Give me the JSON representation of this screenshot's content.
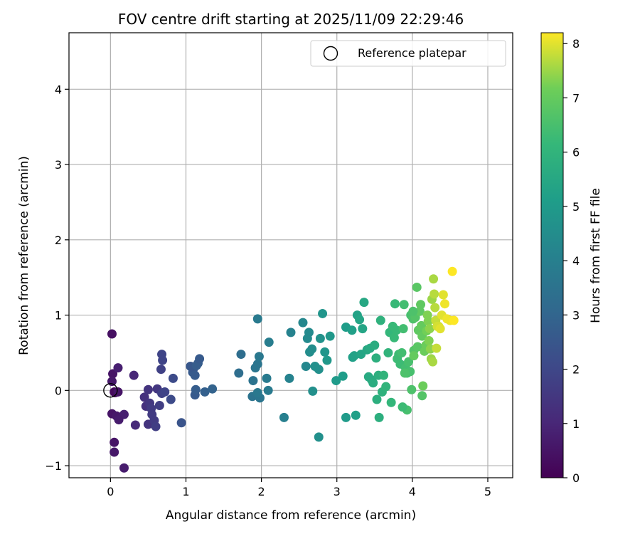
{
  "chart_data": {
    "type": "scatter",
    "title": "FOV centre drift starting at 2025/11/09 22:29:46",
    "xlabel": "Angular distance from reference (arcmin)",
    "ylabel": "Rotation from reference (arcmin)",
    "xlim": [
      -0.55,
      5.33
    ],
    "ylim": [
      -1.16,
      4.75
    ],
    "xticks": [
      "0",
      "1",
      "2",
      "3",
      "4",
      "5"
    ],
    "yticks": [
      "−1",
      "0",
      "1",
      "2",
      "3",
      "4"
    ],
    "xtick_values": [
      0,
      1,
      2,
      3,
      4,
      5
    ],
    "ytick_values": [
      -1,
      0,
      1,
      2,
      3,
      4
    ],
    "grid": true,
    "colormap": "viridis",
    "colorbar": {
      "label": "Hours from first FF file",
      "range": [
        0,
        8.2
      ],
      "ticks": [
        "0",
        "1",
        "2",
        "3",
        "4",
        "5",
        "6",
        "7",
        "8"
      ],
      "tick_values": [
        0,
        1,
        2,
        3,
        4,
        5,
        6,
        7,
        8
      ]
    },
    "legend": {
      "position": "top-right",
      "entries": [
        "Reference platepar"
      ]
    },
    "reference_point": {
      "x": 0,
      "y": 0
    },
    "points": [
      [
        0.02,
        0.75,
        0.4
      ],
      [
        0.03,
        0.22,
        0.5
      ],
      [
        0.05,
        -0.02,
        0.3
      ],
      [
        0.02,
        0.12,
        0.6
      ],
      [
        0.06,
        -0.03,
        0.2
      ],
      [
        0.1,
        -0.02,
        0.5
      ],
      [
        0.02,
        -0.31,
        0.5
      ],
      [
        0.08,
        -0.34,
        0.6
      ],
      [
        0.05,
        -0.69,
        0.5
      ],
      [
        0.05,
        -0.82,
        0.6
      ],
      [
        0.1,
        0.3,
        0.8
      ],
      [
        0.18,
        -0.32,
        0.8
      ],
      [
        0.11,
        -0.39,
        0.7
      ],
      [
        0.18,
        -1.03,
        0.7
      ],
      [
        0.31,
        0.2,
        1.0
      ],
      [
        0.33,
        -0.46,
        1.1
      ],
      [
        0.45,
        -0.09,
        1.3
      ],
      [
        0.47,
        -0.21,
        1.3
      ],
      [
        0.5,
        0.01,
        1.4
      ],
      [
        0.5,
        -0.45,
        1.4
      ],
      [
        0.52,
        -0.17,
        1.5
      ],
      [
        0.54,
        -0.24,
        1.6
      ],
      [
        0.55,
        -0.32,
        1.6
      ],
      [
        0.58,
        -0.4,
        1.6
      ],
      [
        0.6,
        -0.48,
        1.7
      ],
      [
        0.62,
        0.02,
        1.5
      ],
      [
        0.65,
        -0.2,
        1.7
      ],
      [
        0.67,
        0.28,
        1.8
      ],
      [
        0.68,
        0.48,
        1.9
      ],
      [
        0.69,
        0.4,
        1.9
      ],
      [
        0.68,
        -0.04,
        1.8
      ],
      [
        0.72,
        -0.02,
        1.9
      ],
      [
        0.8,
        -0.12,
        2.1
      ],
      [
        0.83,
        0.16,
        2.1
      ],
      [
        0.94,
        -0.43,
        2.4
      ],
      [
        1.06,
        0.32,
        2.5
      ],
      [
        1.09,
        0.24,
        2.6
      ],
      [
        1.1,
        0.29,
        2.5
      ],
      [
        1.12,
        0.2,
        2.6
      ],
      [
        1.14,
        0.33,
        2.7
      ],
      [
        1.16,
        0.36,
        2.7
      ],
      [
        1.18,
        0.42,
        2.6
      ],
      [
        1.12,
        -0.06,
        2.6
      ],
      [
        1.13,
        0.01,
        2.7
      ],
      [
        1.25,
        -0.02,
        2.8
      ],
      [
        1.35,
        0.02,
        2.9
      ],
      [
        1.7,
        0.23,
        3.3
      ],
      [
        1.73,
        0.48,
        3.3
      ],
      [
        1.88,
        -0.08,
        3.5
      ],
      [
        1.89,
        0.13,
        3.5
      ],
      [
        1.92,
        0.3,
        3.6
      ],
      [
        1.95,
        0.35,
        3.6
      ],
      [
        1.97,
        0.45,
        3.7
      ],
      [
        1.98,
        -0.1,
        3.6
      ],
      [
        1.95,
        -0.03,
        3.7
      ],
      [
        1.95,
        0.95,
        3.8
      ],
      [
        2.07,
        0.16,
        3.8
      ],
      [
        2.09,
        0.0,
        3.8
      ],
      [
        2.1,
        0.64,
        3.9
      ],
      [
        2.3,
        -0.36,
        4.0
      ],
      [
        2.37,
        0.16,
        4.1
      ],
      [
        2.39,
        0.77,
        4.1
      ],
      [
        2.55,
        0.9,
        4.3
      ],
      [
        2.59,
        0.32,
        4.3
      ],
      [
        2.61,
        0.69,
        4.4
      ],
      [
        2.63,
        0.77,
        4.4
      ],
      [
        2.64,
        0.51,
        4.5
      ],
      [
        2.67,
        0.55,
        4.5
      ],
      [
        2.68,
        -0.01,
        4.6
      ],
      [
        2.71,
        0.32,
        4.6
      ],
      [
        2.76,
        0.28,
        4.6
      ],
      [
        2.76,
        -0.62,
        4.6
      ],
      [
        2.78,
        0.69,
        4.7
      ],
      [
        2.81,
        1.02,
        4.8
      ],
      [
        2.84,
        0.51,
        4.8
      ],
      [
        2.87,
        0.4,
        4.9
      ],
      [
        2.91,
        0.72,
        4.9
      ],
      [
        2.99,
        0.13,
        5.0
      ],
      [
        3.08,
        0.19,
        5.1
      ],
      [
        3.12,
        -0.36,
        5.0
      ],
      [
        3.12,
        0.84,
        5.1
      ],
      [
        3.2,
        0.8,
        5.2
      ],
      [
        3.21,
        0.44,
        5.2
      ],
      [
        3.23,
        0.46,
        5.3
      ],
      [
        3.25,
        -0.33,
        5.2
      ],
      [
        3.27,
        1.0,
        5.3
      ],
      [
        3.3,
        0.94,
        5.4
      ],
      [
        3.32,
        0.48,
        5.4
      ],
      [
        3.34,
        0.82,
        5.4
      ],
      [
        3.36,
        1.17,
        5.5
      ],
      [
        3.4,
        0.54,
        5.5
      ],
      [
        3.42,
        0.18,
        5.6
      ],
      [
        3.44,
        0.56,
        5.6
      ],
      [
        3.46,
        0.14,
        5.6
      ],
      [
        3.48,
        0.1,
        5.7
      ],
      [
        3.5,
        0.6,
        5.7
      ],
      [
        3.52,
        0.43,
        5.8
      ],
      [
        3.53,
        -0.12,
        5.8
      ],
      [
        3.55,
        0.2,
        5.8
      ],
      [
        3.56,
        -0.36,
        5.8
      ],
      [
        3.58,
        0.93,
        5.9
      ],
      [
        3.6,
        -0.02,
        5.9
      ],
      [
        3.62,
        0.2,
        6.0
      ],
      [
        3.65,
        0.05,
        6.0
      ],
      [
        3.68,
        0.5,
        6.0
      ],
      [
        3.7,
        0.77,
        6.1
      ],
      [
        3.72,
        -0.16,
        6.1
      ],
      [
        3.74,
        0.85,
        6.2
      ],
      [
        3.76,
        0.7,
        6.2
      ],
      [
        3.77,
        1.15,
        6.2
      ],
      [
        3.79,
        0.8,
        6.2
      ],
      [
        3.8,
        0.42,
        6.3
      ],
      [
        3.82,
        0.48,
        6.3
      ],
      [
        3.84,
        0.35,
        6.3
      ],
      [
        3.86,
        0.5,
        6.4
      ],
      [
        3.88,
        0.82,
        6.4
      ],
      [
        3.89,
        1.14,
        6.4
      ],
      [
        3.91,
        0.3,
        6.4
      ],
      [
        3.93,
        0.23,
        6.5
      ],
      [
        3.93,
        -0.26,
        6.5
      ],
      [
        3.95,
        0.38,
        6.5
      ],
      [
        3.97,
        0.25,
        6.5
      ],
      [
        3.98,
        1.0,
        6.5
      ],
      [
        3.99,
        0.01,
        6.6
      ],
      [
        4.01,
        0.95,
        6.6
      ],
      [
        4.02,
        0.53,
        6.7
      ],
      [
        4.04,
        0.97,
        6.7
      ],
      [
        4.06,
        1.37,
        6.8
      ],
      [
        4.07,
        0.58,
        6.8
      ],
      [
        4.08,
        0.8,
        6.9
      ],
      [
        4.1,
        1.05,
        6.9
      ],
      [
        4.11,
        1.14,
        6.9
      ],
      [
        4.12,
        0.86,
        7.0
      ],
      [
        4.13,
        0.72,
        7.0
      ],
      [
        4.14,
        0.06,
        7.1
      ],
      [
        4.16,
        0.52,
        7.1
      ],
      [
        4.18,
        0.6,
        7.1
      ],
      [
        4.19,
        0.79,
        7.2
      ],
      [
        4.2,
        1.0,
        7.3
      ],
      [
        4.21,
        0.92,
        7.3
      ],
      [
        4.22,
        0.66,
        7.3
      ],
      [
        4.23,
        0.82,
        7.4
      ],
      [
        4.24,
        0.55,
        7.4
      ],
      [
        4.25,
        0.42,
        7.5
      ],
      [
        4.26,
        1.21,
        7.5
      ],
      [
        4.27,
        0.38,
        7.6
      ],
      [
        4.28,
        1.48,
        7.6
      ],
      [
        4.29,
        1.28,
        7.7
      ],
      [
        4.3,
        1.1,
        7.7
      ],
      [
        4.31,
        0.93,
        7.8
      ],
      [
        4.32,
        0.56,
        7.8
      ],
      [
        4.33,
        0.85,
        7.9
      ],
      [
        4.35,
        0.85,
        7.9
      ],
      [
        4.37,
        0.82,
        8.0
      ],
      [
        4.39,
        1.0,
        8.0
      ],
      [
        4.41,
        1.27,
        8.0
      ],
      [
        4.43,
        1.15,
        8.1
      ],
      [
        4.46,
        0.95,
        8.1
      ],
      [
        4.5,
        0.93,
        8.1
      ],
      [
        4.53,
        1.58,
        8.2
      ],
      [
        4.55,
        0.93,
        8.2
      ],
      [
        4.13,
        -0.07,
        6.7
      ],
      [
        4.02,
        0.46,
        7.0
      ],
      [
        3.87,
        -0.22,
        6.3
      ],
      [
        4.01,
        1.05,
        6.6
      ],
      [
        3.9,
        0.23,
        6.6
      ]
    ]
  }
}
